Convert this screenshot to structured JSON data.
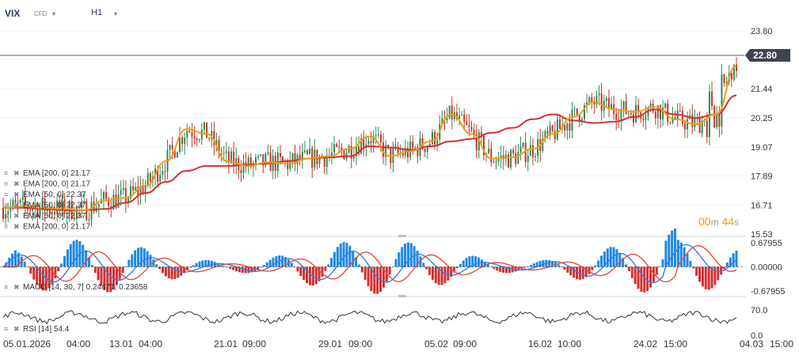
{
  "header": {
    "symbol": "VIX",
    "instrument_type": "CFD",
    "timeframe": "H1"
  },
  "timer": {
    "minutes": "00",
    "min_unit": "m",
    "seconds": "44",
    "sec_unit": "s"
  },
  "colors": {
    "price_up": "#2e8b57",
    "price_down": "#c0392b",
    "ema_fast": "#f39c12",
    "ema_slow": "#d63031",
    "last_price_badge": "#3d4452",
    "macd_line": "#2f80ed",
    "signal_line": "#e74c3c",
    "hist_pos": "#1e88e5",
    "hist_neg": "#d32f2f",
    "rsi_line": "#333333"
  },
  "chart_data": [
    {
      "type": "line",
      "panel": "price",
      "last_price": 22.8,
      "y_ticks": [
        23.8,
        22.62,
        21.44,
        20.25,
        19.07,
        17.89,
        16.71,
        15.53
      ],
      "ylim": [
        15.53,
        24.6
      ],
      "x_tick_labels": [
        "05.01.2026",
        "04:00",
        "13.01",
        "04:00",
        "21.01",
        "09:00",
        "29.01",
        "09:00",
        "05.02",
        "09:00",
        "16.02",
        "10:00",
        "24.02",
        "15:00",
        "04.03",
        "15:00"
      ],
      "legend": [
        "EMA [200, 0] 21.17",
        "EMA [200, 0] 21.17",
        "EMA [50, 0] 22.37",
        "EMA [50, 0] 22.37",
        "EMA [50, 0] 22.37",
        "EMA [200, 0] 21.17"
      ],
      "series": [
        {
          "name": "EMA [200, 0] 21.17",
          "values": [
            16.6,
            16.6,
            16.55,
            16.5,
            16.5,
            16.55,
            16.8,
            17.2,
            17.65,
            18.1,
            18.3,
            18.3,
            18.35,
            18.4,
            18.5,
            18.6,
            18.65,
            18.7,
            19.1,
            19.05,
            18.95,
            19.1,
            19.3,
            19.4,
            19.65,
            19.85,
            20.2,
            20.4,
            20.15,
            20.05,
            20.1,
            20.3,
            20.6,
            20.4,
            20.25,
            20.4,
            21.17
          ]
        },
        {
          "name": "EMA [50, 0] 22.37",
          "values": [
            16.6,
            16.65,
            16.6,
            16.55,
            16.5,
            16.9,
            17.0,
            17.5,
            18.5,
            19.8,
            19.6,
            18.5,
            18.3,
            18.45,
            18.4,
            18.6,
            18.7,
            19.0,
            19.5,
            18.7,
            18.9,
            19.3,
            20.4,
            19.6,
            18.6,
            18.65,
            19.0,
            19.6,
            20.3,
            20.9,
            20.6,
            20.5,
            20.7,
            20.2,
            20.0,
            20.4,
            22.37
          ]
        }
      ]
    },
    {
      "type": "line",
      "panel": "MACD",
      "label": "MACD [14, 30, 7]",
      "macd_value": "0.24471",
      "signal_value": "0.23658",
      "y_ticks": [
        "0.67955",
        "0.00000",
        "-0.67955"
      ],
      "ylim": [
        -0.67955,
        0.67955
      ]
    },
    {
      "type": "line",
      "panel": "RSI",
      "label": "RSI [14]",
      "value": "54.4",
      "y_ticks": [
        "70.0",
        "0.0"
      ],
      "ylim": [
        0,
        100
      ]
    }
  ]
}
